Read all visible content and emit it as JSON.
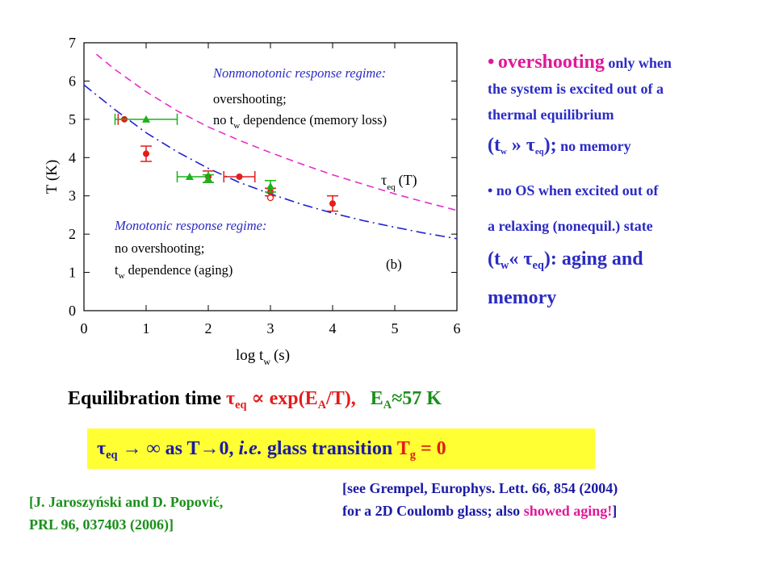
{
  "chart_data": {
    "type": "scatter",
    "xlabel": "log t",
    "xlabel_sub": "w",
    "xlabel_units": "(s)",
    "ylabel": "T (K)",
    "xlim": [
      0,
      6
    ],
    "ylim": [
      0,
      7
    ],
    "xticks": [
      "0",
      "1",
      "2",
      "3",
      "4",
      "5",
      "6"
    ],
    "yticks": [
      "0",
      "1",
      "2",
      "3",
      "4",
      "5",
      "6",
      "7"
    ],
    "panel_label": "(b)",
    "curve_label": "τ",
    "curve_label_sub": "eq",
    "curve_label_arg": "(T)",
    "upper_region": {
      "title": "Nonmonotonic response regime:",
      "line1": "overshooting;",
      "line2_a": "no t",
      "line2_sub": "w",
      "line2_b": " dependence (memory loss)"
    },
    "lower_region": {
      "title": "Monotonic response regime:",
      "line1": "no overshooting;",
      "line2_a": "t",
      "line2_sub": "w",
      "line2_b": " dependence (aging)"
    },
    "curves": [
      {
        "style": "dashed",
        "color": "#e82ec9",
        "x": [
          0.2,
          0.5,
          1,
          1.5,
          2,
          2.5,
          3,
          3.5,
          4,
          4.5,
          5,
          5.5,
          6
        ],
        "y": [
          6.7,
          6.3,
          5.72,
          5.22,
          4.8,
          4.45,
          4.13,
          3.83,
          3.55,
          3.3,
          3.05,
          2.83,
          2.62
        ]
      },
      {
        "style": "dashdot",
        "color": "#2020d0",
        "x": [
          0,
          0.5,
          1,
          1.5,
          2,
          2.5,
          3,
          3.5,
          4,
          4.5,
          5,
          5.5,
          6
        ],
        "y": [
          5.9,
          5.25,
          4.65,
          4.15,
          3.72,
          3.35,
          3.05,
          2.78,
          2.55,
          2.35,
          2.18,
          2.02,
          1.88
        ]
      }
    ],
    "series": [
      {
        "marker": "circle",
        "color": "#e31c1c",
        "points": [
          {
            "x": 0.65,
            "y": 5.0,
            "xerr": [
              0.1,
              0.0
            ],
            "yerr": [
              0,
              0
            ]
          },
          {
            "x": 1.0,
            "y": 4.1,
            "xerr": [
              0,
              0
            ],
            "yerr": [
              0.2,
              0.2
            ]
          },
          {
            "x": 2.0,
            "y": 3.5,
            "xerr": [
              0,
              0
            ],
            "yerr": [
              0.15,
              0.15
            ]
          },
          {
            "x": 2.5,
            "y": 3.5,
            "xerr": [
              0.25,
              0.25
            ],
            "yerr": [
              0,
              0
            ]
          },
          {
            "x": 3.0,
            "y": 3.1,
            "xerr": [
              0,
              0
            ],
            "yerr": [
              0.1,
              0.1
            ]
          },
          {
            "x": 4.0,
            "y": 2.8,
            "xerr": [
              0,
              0
            ],
            "yerr": [
              0.2,
              0.2
            ]
          }
        ]
      },
      {
        "marker": "triangle",
        "color": "#18b318",
        "points": [
          {
            "x": 1.0,
            "y": 5.0,
            "xerr": [
              0.5,
              0.5
            ],
            "yerr": [
              0,
              0
            ]
          },
          {
            "x": 1.7,
            "y": 3.5,
            "xerr": [
              0.2,
              0.3
            ],
            "yerr": [
              0,
              0
            ]
          },
          {
            "x": 2.0,
            "y": 3.45,
            "xerr": [
              0,
              0
            ],
            "yerr": [
              0.1,
              0.1
            ]
          },
          {
            "x": 3.0,
            "y": 3.25,
            "xerr": [
              0,
              0
            ],
            "yerr": [
              0.15,
              0.15
            ]
          }
        ]
      },
      {
        "marker": "open-circle",
        "color": "#e31c1c",
        "points": [
          {
            "x": 3.0,
            "y": 2.95,
            "xerr": [
              0,
              0
            ],
            "yerr": [
              0,
              0
            ]
          }
        ]
      }
    ]
  },
  "bullets": {
    "b1_dot": "•",
    "b1_big": "overshooting",
    "b1_rest": " only when",
    "b1_line2": "the system is excited out of a",
    "b1_line3": "thermal equilibrium",
    "b1_t": "(t",
    "b1_t_sub": "w",
    "b1_rel": " » τ",
    "b1_eq_sub": "eq",
    "b1_close": ");",
    "b1_tail": " no memory",
    "b2_line1": "• no OS when excited out of",
    "b2_line2": "a relaxing (nonequil.) state",
    "b2_t": "(t",
    "b2_t_sub": "w",
    "b2_rel": "« τ",
    "b2_eq_sub": "eq",
    "b2_close": "): aging and",
    "b2_line4": "memory"
  },
  "equation": {
    "label": "Equilibration time ",
    "tau": "τ",
    "tau_sub": "eq",
    "prop": " ∝ exp(E",
    "ea_sub": "A",
    "prop_end": "/T),",
    "ea": "E",
    "ea_sub2": "A",
    "ea_val": "≈57 K"
  },
  "glass": {
    "tau": "τ",
    "tau_sub": "eq",
    "arrow": " → ∞  as  T→0, ",
    "ie": "i.e.",
    "glass": "  glass transition ",
    "tg": "T",
    "tg_sub": "g",
    "tg_val": " = 0"
  },
  "refs": {
    "grempel_line1": "[see Grempel, Europhys. Lett. 66, 854 (2004)",
    "grempel_line2a": " for a 2D Coulomb glass; also ",
    "grempel_aging": "showed aging!",
    "grempel_line2b": "]",
    "jaroszynski_line1": "[J. Jaroszyński and D. Popović,",
    "jaroszynski_line2": "PRL 96, 037403 (2006)]"
  }
}
